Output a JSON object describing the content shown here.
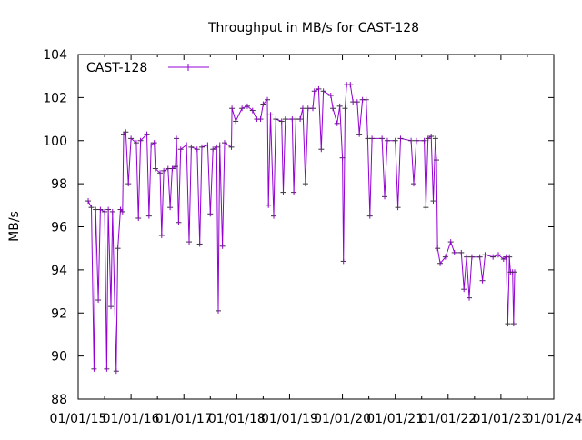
{
  "chart_data": {
    "type": "line",
    "title": "Throughput in MB/s for CAST-128",
    "xlabel": "",
    "ylabel": "MB/s",
    "xlim": [
      2015,
      2024
    ],
    "ylim": [
      88,
      104
    ],
    "x_unit": "decimal year",
    "x_tick_labels": [
      "01/01/15",
      "01/01/16",
      "01/01/17",
      "01/01/18",
      "01/01/19",
      "01/01/20",
      "01/01/21",
      "01/01/22",
      "01/01/23",
      "01/01/24"
    ],
    "y_ticks": [
      88,
      90,
      92,
      94,
      96,
      98,
      100,
      102,
      104
    ],
    "grid": false,
    "legend": {
      "position": "top-left",
      "entries": [
        "CAST-128"
      ]
    },
    "series": [
      {
        "name": "CAST-128",
        "color": "#9400d3",
        "points": [
          [
            2015.19,
            97.2
          ],
          [
            2015.25,
            96.9
          ],
          [
            2015.3,
            89.4
          ],
          [
            2015.33,
            96.8
          ],
          [
            2015.38,
            92.6
          ],
          [
            2015.42,
            96.8
          ],
          [
            2015.5,
            96.7
          ],
          [
            2015.54,
            89.4
          ],
          [
            2015.57,
            96.8
          ],
          [
            2015.62,
            92.3
          ],
          [
            2015.65,
            96.7
          ],
          [
            2015.72,
            89.3
          ],
          [
            2015.75,
            95.0
          ],
          [
            2015.8,
            96.8
          ],
          [
            2015.84,
            96.7
          ],
          [
            2015.86,
            100.3
          ],
          [
            2015.9,
            100.4
          ],
          [
            2015.95,
            98.0
          ],
          [
            2016.0,
            100.1
          ],
          [
            2016.1,
            99.9
          ],
          [
            2016.14,
            96.4
          ],
          [
            2016.18,
            100.0
          ],
          [
            2016.3,
            100.3
          ],
          [
            2016.34,
            96.5
          ],
          [
            2016.38,
            99.8
          ],
          [
            2016.44,
            99.9
          ],
          [
            2016.46,
            98.7
          ],
          [
            2016.55,
            98.5
          ],
          [
            2016.58,
            95.6
          ],
          [
            2016.62,
            98.6
          ],
          [
            2016.7,
            98.7
          ],
          [
            2016.74,
            96.9
          ],
          [
            2016.78,
            98.7
          ],
          [
            2016.84,
            98.8
          ],
          [
            2016.86,
            100.1
          ],
          [
            2016.9,
            96.2
          ],
          [
            2016.94,
            99.6
          ],
          [
            2017.05,
            99.8
          ],
          [
            2017.1,
            95.3
          ],
          [
            2017.14,
            99.7
          ],
          [
            2017.25,
            99.6
          ],
          [
            2017.3,
            95.2
          ],
          [
            2017.34,
            99.7
          ],
          [
            2017.45,
            99.8
          ],
          [
            2017.5,
            96.6
          ],
          [
            2017.55,
            99.6
          ],
          [
            2017.62,
            99.7
          ],
          [
            2017.65,
            92.1
          ],
          [
            2017.68,
            99.8
          ],
          [
            2017.73,
            95.1
          ],
          [
            2017.77,
            99.9
          ],
          [
            2017.9,
            99.7
          ],
          [
            2017.91,
            101.5
          ],
          [
            2017.98,
            100.9
          ],
          [
            2018.1,
            101.5
          ],
          [
            2018.2,
            101.6
          ],
          [
            2018.3,
            101.4
          ],
          [
            2018.38,
            101.0
          ],
          [
            2018.45,
            101.0
          ],
          [
            2018.5,
            101.7
          ],
          [
            2018.58,
            101.9
          ],
          [
            2018.6,
            97.0
          ],
          [
            2018.64,
            101.2
          ],
          [
            2018.7,
            96.5
          ],
          [
            2018.74,
            101.0
          ],
          [
            2018.85,
            100.9
          ],
          [
            2018.88,
            97.6
          ],
          [
            2018.92,
            101.0
          ],
          [
            2019.05,
            101.0
          ],
          [
            2019.08,
            97.6
          ],
          [
            2019.12,
            101.0
          ],
          [
            2019.2,
            101.0
          ],
          [
            2019.25,
            101.5
          ],
          [
            2019.3,
            98.0
          ],
          [
            2019.35,
            101.5
          ],
          [
            2019.44,
            101.5
          ],
          [
            2019.47,
            102.3
          ],
          [
            2019.55,
            102.4
          ],
          [
            2019.6,
            99.6
          ],
          [
            2019.64,
            102.3
          ],
          [
            2019.78,
            102.1
          ],
          [
            2019.82,
            101.5
          ],
          [
            2019.9,
            100.8
          ],
          [
            2019.95,
            101.6
          ],
          [
            2020.0,
            99.2
          ],
          [
            2020.02,
            94.4
          ],
          [
            2020.05,
            101.5
          ],
          [
            2020.08,
            102.6
          ],
          [
            2020.15,
            102.6
          ],
          [
            2020.2,
            101.8
          ],
          [
            2020.28,
            101.8
          ],
          [
            2020.32,
            100.3
          ],
          [
            2020.38,
            101.9
          ],
          [
            2020.45,
            101.9
          ],
          [
            2020.48,
            100.1
          ],
          [
            2020.52,
            96.5
          ],
          [
            2020.56,
            100.1
          ],
          [
            2020.75,
            100.1
          ],
          [
            2020.8,
            97.4
          ],
          [
            2020.85,
            100.0
          ],
          [
            2021.0,
            100.0
          ],
          [
            2021.05,
            96.9
          ],
          [
            2021.1,
            100.1
          ],
          [
            2021.3,
            100.0
          ],
          [
            2021.35,
            98.0
          ],
          [
            2021.4,
            100.0
          ],
          [
            2021.55,
            100.0
          ],
          [
            2021.58,
            96.9
          ],
          [
            2021.62,
            100.1
          ],
          [
            2021.68,
            100.2
          ],
          [
            2021.72,
            97.2
          ],
          [
            2021.76,
            100.1
          ],
          [
            2021.78,
            99.1
          ],
          [
            2021.8,
            95.0
          ],
          [
            2021.85,
            94.3
          ],
          [
            2021.95,
            94.6
          ],
          [
            2022.05,
            95.3
          ],
          [
            2022.12,
            94.8
          ],
          [
            2022.25,
            94.8
          ],
          [
            2022.3,
            93.1
          ],
          [
            2022.35,
            94.6
          ],
          [
            2022.4,
            92.7
          ],
          [
            2022.45,
            94.6
          ],
          [
            2022.6,
            94.6
          ],
          [
            2022.65,
            93.5
          ],
          [
            2022.7,
            94.7
          ],
          [
            2022.85,
            94.6
          ],
          [
            2022.95,
            94.7
          ],
          [
            2023.05,
            94.5
          ],
          [
            2023.1,
            94.6
          ],
          [
            2023.13,
            91.5
          ],
          [
            2023.16,
            94.6
          ],
          [
            2023.18,
            93.9
          ],
          [
            2023.22,
            93.9
          ],
          [
            2023.24,
            91.5
          ],
          [
            2023.26,
            93.9
          ]
        ]
      }
    ]
  }
}
